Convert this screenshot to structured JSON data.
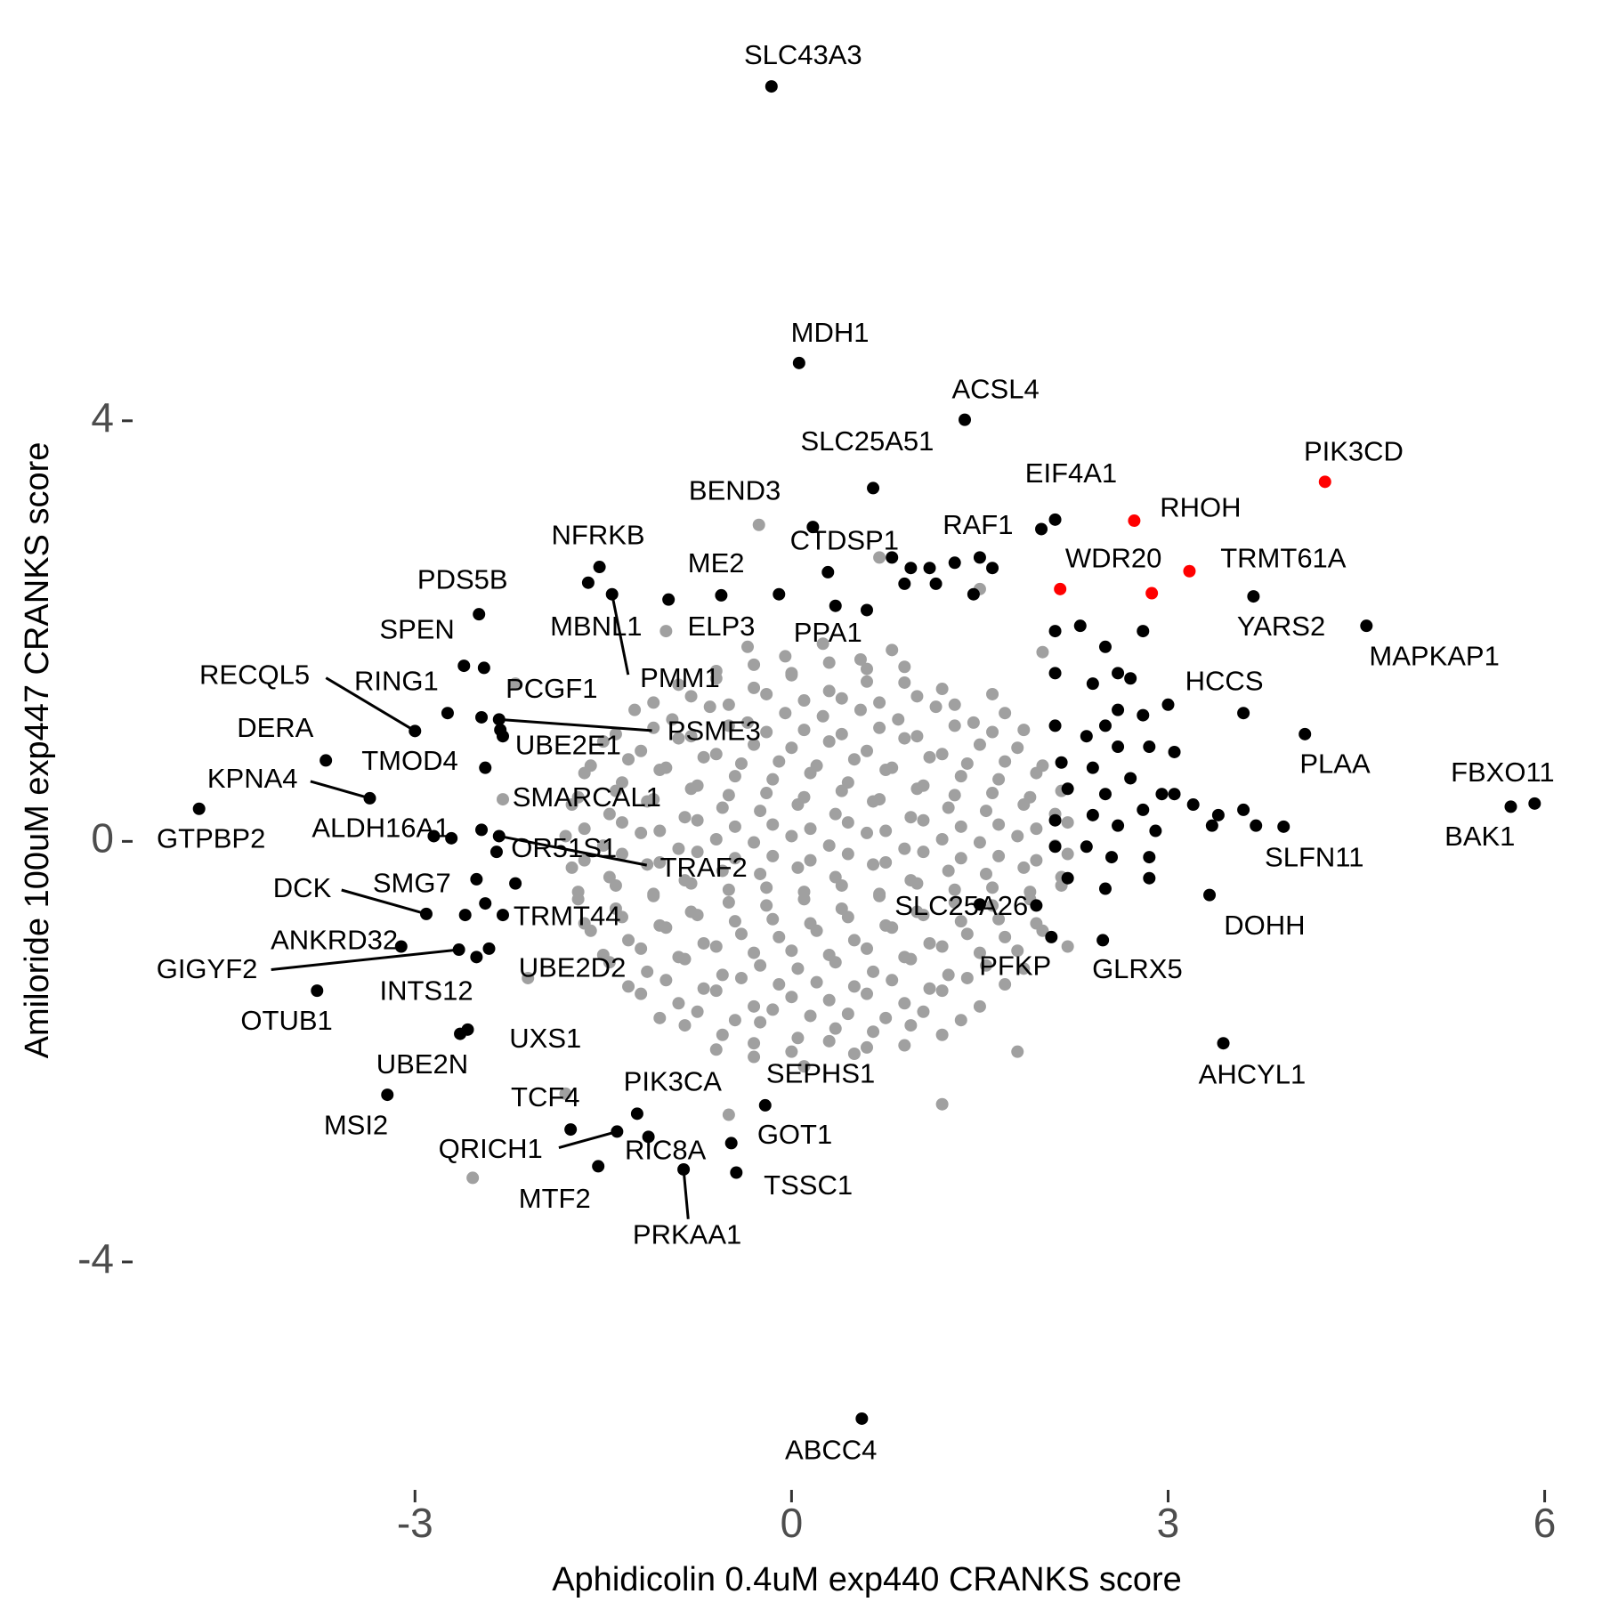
{
  "chart_data": {
    "type": "scatter",
    "x_label": "Aphidicolin 0.4uM exp440 CRANKS score",
    "y_label": "Amiloride 100uM exp447 CRANKS score",
    "xlim": [
      -5.2,
      6.4
    ],
    "ylim": [
      -5.9,
      7.5
    ],
    "xticks": [
      -3,
      0,
      3,
      6
    ],
    "yticks": [
      -4,
      0,
      4
    ],
    "series": [
      {
        "color": "#a0a0a0",
        "x": [
          -0.35,
          -0.05,
          0.25,
          0.55,
          0.8,
          -0.9,
          -0.6,
          -0.3,
          0,
          0.3,
          0.6,
          0.9,
          1.2,
          -1.25,
          -0.95,
          -0.65,
          -0.35,
          -0.05,
          0.25,
          0.55,
          0.85,
          1.15,
          1.45,
          1.7,
          -1.5,
          -1.2,
          -0.9,
          -0.6,
          -0.3,
          0,
          0.3,
          0.6,
          0.9,
          1.2,
          1.5,
          1.8,
          -1.65,
          -1.35,
          -1.05,
          -0.75,
          -0.45,
          -0.15,
          0.15,
          0.45,
          0.75,
          1.05,
          1.35,
          1.65,
          1.95,
          -1.75,
          -1.45,
          -1.15,
          -0.85,
          -0.55,
          -0.25,
          0.05,
          0.35,
          0.65,
          0.95,
          1.25,
          1.55,
          1.85,
          2.1,
          -1.8,
          -1.5,
          -1.2,
          -0.9,
          -0.6,
          -0.3,
          0,
          0.3,
          0.6,
          0.9,
          1.2,
          1.5,
          1.8,
          2.1,
          -1.75,
          -1.45,
          -1.15,
          -0.85,
          -0.55,
          -0.25,
          0.05,
          0.35,
          0.65,
          0.95,
          1.25,
          1.55,
          1.85,
          2.15,
          -1.7,
          -1.4,
          -1.1,
          -0.8,
          -0.5,
          -0.2,
          0.1,
          0.4,
          0.7,
          1,
          1.3,
          1.6,
          1.9,
          -1.6,
          -1.3,
          -1,
          -0.7,
          -0.4,
          -0.1,
          0.2,
          0.5,
          0.8,
          1.1,
          1.4,
          1.7,
          2,
          -1.45,
          -1.15,
          -0.85,
          -0.55,
          -0.25,
          0.05,
          0.35,
          0.65,
          0.95,
          1.25,
          1.55,
          1.85,
          -1.2,
          -0.9,
          -0.6,
          -0.3,
          0,
          0.3,
          0.6,
          0.9,
          1.2,
          1.5,
          -0.85,
          -0.55,
          -0.25,
          0.05,
          0.35,
          0.65,
          0.95,
          1.2,
          -0.3,
          0.1,
          0.5
        ],
        "y": [
          1.85,
          1.76,
          1.88,
          1.73,
          1.82,
          1.49,
          1.55,
          1.46,
          1.58,
          1.43,
          1.52,
          1.51,
          1.45,
          1.25,
          1.16,
          1.28,
          1.13,
          1.22,
          1.19,
          1.25,
          1.16,
          1.28,
          1.13,
          1.22,
          0.95,
          0.86,
          0.98,
          0.83,
          0.92,
          0.89,
          0.95,
          0.86,
          0.98,
          0.83,
          0.92,
          0.89,
          0.65,
          0.56,
          0.68,
          0.53,
          0.62,
          0.59,
          0.65,
          0.56,
          0.68,
          0.53,
          0.62,
          0.59,
          0.65,
          0.35,
          0.26,
          0.38,
          0.23,
          0.32,
          0.29,
          0.35,
          0.26,
          0.38,
          0.23,
          0.32,
          0.29,
          0.35,
          0.26,
          0.05,
          -0.04,
          0.08,
          -0.07,
          0.02,
          -0.01,
          0.05,
          -0.04,
          0.08,
          -0.07,
          0.02,
          -0.01,
          0.05,
          -0.04,
          -0.25,
          -0.34,
          -0.22,
          -0.37,
          -0.28,
          -0.31,
          -0.25,
          -0.34,
          -0.22,
          -0.37,
          -0.28,
          -0.31,
          -0.25,
          -0.34,
          -0.55,
          -0.64,
          -0.52,
          -0.67,
          -0.58,
          -0.61,
          -0.55,
          -0.64,
          -0.52,
          -0.67,
          -0.58,
          -0.61,
          -0.55,
          -0.85,
          -0.94,
          -0.82,
          -0.97,
          -0.88,
          -0.91,
          -0.85,
          -0.94,
          -0.82,
          -0.97,
          -0.88,
          -0.91,
          -0.85,
          -1.15,
          -1.24,
          -1.12,
          -1.27,
          -1.18,
          -1.21,
          -1.15,
          -1.24,
          -1.12,
          -1.27,
          -1.18,
          -1.21,
          -1.45,
          -1.54,
          -1.42,
          -1.57,
          -1.48,
          -1.51,
          -1.45,
          -1.54,
          -1.42,
          -1.57,
          -1.75,
          -1.84,
          -1.72,
          -1.87,
          -1.78,
          -1.81,
          -1.75,
          -1.84,
          -2.05,
          -2.14,
          -2.02
        ]
      },
      {
        "color": "#a0a0a0",
        "x": [
          -0.6,
          -0.3,
          0,
          0.3,
          0.6,
          0.9,
          -1.1,
          -0.8,
          -0.5,
          -0.2,
          0.1,
          0.4,
          0.7,
          1,
          1.3,
          1.6,
          -1.4,
          -1.1,
          -0.8,
          -0.5,
          -0.2,
          0.1,
          0.4,
          0.7,
          1,
          1.3,
          1.6,
          1.85,
          -1.6,
          -1.3,
          -1,
          -0.7,
          -0.4,
          -0.1,
          0.2,
          0.5,
          0.8,
          1.1,
          1.4,
          1.7,
          2,
          -1.7,
          -1.4,
          -1.1,
          -0.8,
          -0.5,
          -0.2,
          0.1,
          0.4,
          0.7,
          1,
          1.3,
          1.6,
          1.9,
          2.15,
          -1.65,
          -1.35,
          -1.05,
          -0.75,
          -0.45,
          -0.15,
          0.15,
          0.45,
          0.75,
          1.05,
          1.35,
          1.65,
          1.95,
          2.2,
          -1.65,
          -1.35,
          -1.05,
          -0.75,
          -0.45,
          -0.15,
          0.15,
          0.45,
          0.75,
          1.05,
          1.35,
          1.65,
          1.95,
          2.2,
          -1.7,
          -1.4,
          -1.1,
          -0.8,
          -0.5,
          -0.2,
          0.1,
          0.4,
          0.7,
          1,
          1.3,
          1.6,
          1.9,
          2.15,
          -1.65,
          -1.35,
          -1.05,
          -0.75,
          -0.45,
          -0.15,
          0.15,
          0.45,
          0.75,
          1.05,
          1.35,
          1.65,
          1.95,
          -1.5,
          -1.2,
          -0.9,
          -0.6,
          -0.3,
          0,
          0.3,
          0.6,
          0.9,
          1.2,
          1.5,
          1.8,
          -1.3,
          -1,
          -0.7,
          -0.4,
          -0.1,
          0.2,
          0.5,
          0.8,
          1.1,
          1.4,
          1.7,
          -1.05,
          -0.75,
          -0.45,
          -0.15,
          0.15,
          0.45,
          0.75,
          1.05,
          1.35,
          -0.6,
          -0.3,
          0,
          0.3,
          0.6,
          0.9
        ],
        "y": [
          1.62,
          1.68,
          1.6,
          1.7,
          1.64,
          1.66,
          1.32,
          1.38,
          1.3,
          1.4,
          1.34,
          1.36,
          1.32,
          1.38,
          1.3,
          1.4,
          1.02,
          1.08,
          1,
          1.1,
          1.04,
          1.06,
          1.02,
          1.08,
          1,
          1.1,
          1.04,
          1.06,
          0.72,
          0.78,
          0.7,
          0.8,
          0.74,
          0.76,
          0.72,
          0.78,
          0.7,
          0.8,
          0.74,
          0.76,
          0.72,
          0.42,
          0.48,
          0.4,
          0.5,
          0.44,
          0.46,
          0.42,
          0.48,
          0.4,
          0.5,
          0.44,
          0.46,
          0.42,
          0.48,
          0.12,
          0.18,
          0.1,
          0.2,
          0.14,
          0.16,
          0.12,
          0.18,
          0.1,
          0.2,
          0.14,
          0.16,
          0.12,
          0.18,
          -0.18,
          -0.12,
          -0.2,
          -0.1,
          -0.16,
          -0.14,
          -0.18,
          -0.12,
          -0.2,
          -0.1,
          -0.16,
          -0.14,
          -0.18,
          -0.12,
          -0.48,
          -0.42,
          -0.5,
          -0.4,
          -0.46,
          -0.44,
          -0.48,
          -0.42,
          -0.5,
          -0.4,
          -0.46,
          -0.44,
          -0.48,
          -0.42,
          -0.78,
          -0.72,
          -0.8,
          -0.7,
          -0.76,
          -0.74,
          -0.78,
          -0.72,
          -0.8,
          -0.7,
          -0.76,
          -0.74,
          -0.78,
          -1.08,
          -1.02,
          -1.1,
          -1,
          -1.06,
          -1.04,
          -1.08,
          -1.02,
          -1.1,
          -1,
          -1.06,
          -1.04,
          -1.38,
          -1.32,
          -1.4,
          -1.3,
          -1.36,
          -1.34,
          -1.38,
          -1.32,
          -1.4,
          -1.3,
          -1.36,
          -1.68,
          -1.62,
          -1.7,
          -1.6,
          -1.66,
          -1.64,
          -1.68,
          -1.62,
          -1.7,
          -1.98,
          -1.92,
          -2,
          -1.9,
          -1.96,
          -1.94
        ]
      },
      {
        "color": "#a0a0a0",
        "x": [
          -0.26,
          -2.54,
          -2.1,
          -2.2,
          1.5,
          2.0,
          -1.8,
          1.8,
          -2.3,
          2.2,
          0.7,
          -1.0,
          1.2,
          -0.5
        ],
        "y": [
          3.01,
          -3.2,
          -1.3,
          1.5,
          2.4,
          1.8,
          -2.4,
          -2.0,
          0.4,
          -1.0,
          2.7,
          2.0,
          -2.5,
          -2.6
        ]
      },
      {
        "color": "#000000",
        "x": [
          2.1,
          2.3,
          2.5,
          2.6,
          2.1,
          2.4,
          2.7,
          2.1,
          2.35,
          2.6,
          2.85,
          3.05,
          2.15,
          2.4,
          2.7,
          2.95,
          2.2,
          2.5,
          2.8,
          3.2,
          3.4,
          3.6,
          2.1,
          2.4,
          2.6,
          2.9,
          3.35,
          3.7,
          2.1,
          2.35,
          2.55,
          2.85,
          2.2,
          2.85,
          2.5,
          2.6,
          2.8,
          2.5,
          0.8,
          0.95,
          1.15,
          1.3,
          1.45,
          0.9,
          1.5,
          1.1,
          1.6,
          0.6,
          -2.85,
          -2.6,
          -2.45,
          -2.3,
          -2.2,
          -2.3,
          2.8,
          3.0,
          3.05,
          -0.1,
          1.5
        ],
        "y": [
          2.0,
          2.05,
          1.85,
          1.6,
          1.6,
          1.5,
          1.55,
          1.1,
          1.0,
          0.9,
          0.9,
          0.85,
          0.75,
          0.7,
          0.6,
          0.45,
          0.5,
          0.45,
          0.3,
          0.35,
          0.25,
          0.3,
          0.2,
          0.25,
          0.15,
          0.1,
          0.15,
          0.15,
          -0.05,
          -0.05,
          -0.15,
          -0.15,
          -0.35,
          -0.35,
          -0.45,
          1.25,
          1.2,
          1.1,
          2.7,
          2.6,
          2.45,
          2.65,
          2.35,
          2.45,
          2.7,
          2.6,
          2.6,
          2.2,
          0.05,
          -0.7,
          1.65,
          1.0,
          -0.4,
          -0.7,
          2.0,
          1.3,
          0.45,
          2.35,
          -0.6
        ]
      },
      {
        "color": "#000000",
        "x": [
          -0.16,
          0.06,
          1.38,
          0.65,
          2.1,
          1.99,
          0.17,
          0.29,
          -1.53,
          -0.56,
          -2.49,
          -2.61,
          -1.62,
          -1.43,
          -0.98,
          0.35,
          -3.0,
          -2.74,
          -2.47,
          -2.33,
          -2.32,
          -2.44,
          -3.71,
          -3.36,
          -4.72,
          -2.47,
          -2.71,
          -2.35,
          -2.33,
          -2.91,
          -2.51,
          -2.44,
          -3.11,
          -2.65,
          -2.41,
          -2.51,
          -3.78,
          -2.58,
          -2.64,
          -3.22,
          -1.76,
          -1.23,
          -1.39,
          -1.14,
          -1.54,
          -0.86,
          -0.21,
          -0.48,
          -0.44,
          0.56,
          1.95,
          2.07,
          2.48,
          3.33,
          3.44,
          3.92,
          5.73,
          5.92,
          4.09,
          3.6,
          3.68,
          4.58
        ],
        "y": [
          7.18,
          4.55,
          4.01,
          3.36,
          3.06,
          2.97,
          2.99,
          2.56,
          2.61,
          2.34,
          2.16,
          1.67,
          2.46,
          2.35,
          2.3,
          2.24,
          1.05,
          1.22,
          1.18,
          1.16,
          1.06,
          0.7,
          0.77,
          0.41,
          0.31,
          0.11,
          0.03,
          -0.1,
          0.05,
          -0.69,
          -0.36,
          -0.59,
          -1.0,
          -1.03,
          -1.02,
          -1.1,
          -1.42,
          -1.79,
          -1.83,
          -2.41,
          -2.74,
          -2.59,
          -2.76,
          -2.81,
          -3.09,
          -3.12,
          -2.51,
          -2.87,
          -3.15,
          -5.49,
          -0.61,
          -0.91,
          -0.94,
          -0.51,
          -1.92,
          0.14,
          0.33,
          0.36,
          1.02,
          1.22,
          2.33,
          2.05
        ],
        "labels": [
          "SLC43A3",
          "MDH1",
          "ACSL4",
          "SLC25A51",
          "EIF4A1",
          "RAF1",
          "BEND3",
          "CTDSP1",
          "NFRKB",
          "ME2",
          "PDS5B",
          "SPEN",
          "MBNL1",
          "PMM1",
          "ELP3",
          "PPA1",
          "RECQL5",
          "RING1",
          "PCGF1",
          "PSME3",
          "UBE2E1",
          "TMOD4",
          "DERA",
          "KPNA4",
          "GTPBP2",
          "SMARCAL1",
          "ALDH16A1",
          "OR51S1",
          "TRAF2",
          "DCK",
          "SMG7",
          "TRMT44",
          "ANKRD32",
          "GIGYF2",
          "UBE2D2",
          "INTS12",
          "OTUB1",
          "UXS1",
          "UBE2N",
          "MSI2",
          "TCF4",
          "PIK3CA",
          "QRICH1",
          "RIC8A",
          "MTF2",
          "PRKAA1",
          "SEPHS1",
          "GOT1",
          "TSSC1",
          "ABCC4",
          "SLC25A26",
          "PFKP",
          "GLRX5",
          "DOHH",
          "AHCYL1",
          "SLFN11",
          "BAK1",
          "FBXO11",
          "PLAA",
          "HCCS",
          "YARS2",
          "MAPKAP1"
        ]
      },
      {
        "color": "#ff0000",
        "x": [
          4.25,
          2.73,
          3.17,
          2.14
        ],
        "y": [
          3.42,
          3.05,
          2.57,
          2.4
        ],
        "labels": [
          "PIK3CD",
          "RHOH",
          "TRMT61A",
          "WDR20"
        ]
      },
      {
        "color": "#ff0000",
        "x": [
          2.87
        ],
        "y": [
          2.36
        ]
      }
    ]
  }
}
